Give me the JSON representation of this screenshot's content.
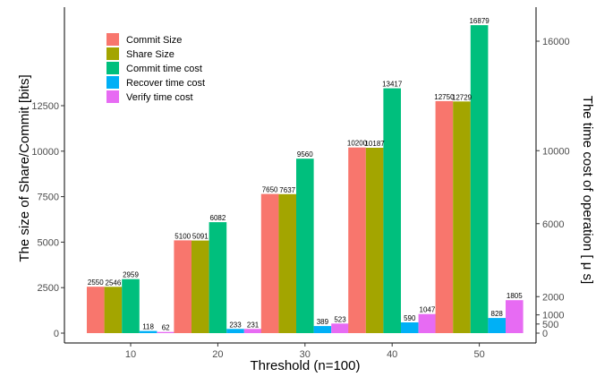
{
  "chart_data": {
    "type": "bar",
    "title": "",
    "xlabel": "Threshold (n=100)",
    "ylabel": "The size of Share/Commit [bits]",
    "y2label": "The time cost of operation [ μ s]",
    "categories": [
      "10",
      "20",
      "30",
      "40",
      "50"
    ],
    "series": [
      {
        "name": "Commit Size",
        "axis": "left",
        "color": "#F8766D",
        "values": [
          2550,
          5100,
          7650,
          10200,
          12750
        ]
      },
      {
        "name": "Share Size",
        "axis": "left",
        "color": "#A3A500",
        "values": [
          2546,
          5091,
          7637,
          10187,
          12729
        ]
      },
      {
        "name": "Commit time cost",
        "axis": "right",
        "color": "#00BF7D",
        "values": [
          2959,
          6082,
          9560,
          13417,
          16879
        ]
      },
      {
        "name": "Recover time cost",
        "axis": "right",
        "color": "#00B0F6",
        "values": [
          118,
          233,
          389,
          590,
          828
        ]
      },
      {
        "name": "Verify time cost",
        "axis": "right",
        "color": "#E76BF3",
        "values": [
          62,
          231,
          523,
          1047,
          1805
        ]
      }
    ],
    "y_ticks": [
      0,
      2500,
      5000,
      7500,
      10000,
      12500
    ],
    "y2_ticks": [
      0,
      500,
      1000,
      2000,
      6000,
      10000,
      16000
    ],
    "ylim": [
      0,
      14200
    ],
    "y2lim": [
      0,
      17600
    ],
    "grid": false,
    "legend_position": "top-left"
  }
}
